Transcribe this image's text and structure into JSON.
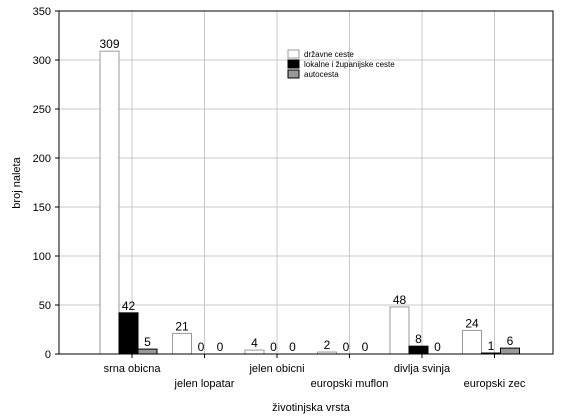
{
  "chart_data": {
    "type": "bar",
    "title": "",
    "xlabel": "životinjska vrsta",
    "ylabel": "broj naleta",
    "ylim": [
      0,
      350
    ],
    "yticks": [
      0,
      50,
      100,
      150,
      200,
      250,
      300,
      350
    ],
    "grid": true,
    "legend_position": "top-right",
    "categories": [
      "srna obicna",
      "jelen lopatar",
      "jelen obicni",
      "europski muflon",
      "divlja svinja",
      "europski zec"
    ],
    "series": [
      {
        "name": "državne ceste",
        "color": "#ffffff",
        "values": [
          309,
          21,
          4,
          2,
          48,
          24
        ]
      },
      {
        "name": "lokalne i županijske ceste",
        "color": "#000000",
        "values": [
          42,
          0,
          0,
          0,
          8,
          1
        ]
      },
      {
        "name": "autocesta",
        "color": "#999999",
        "values": [
          5,
          0,
          0,
          0,
          0,
          6
        ]
      }
    ]
  }
}
